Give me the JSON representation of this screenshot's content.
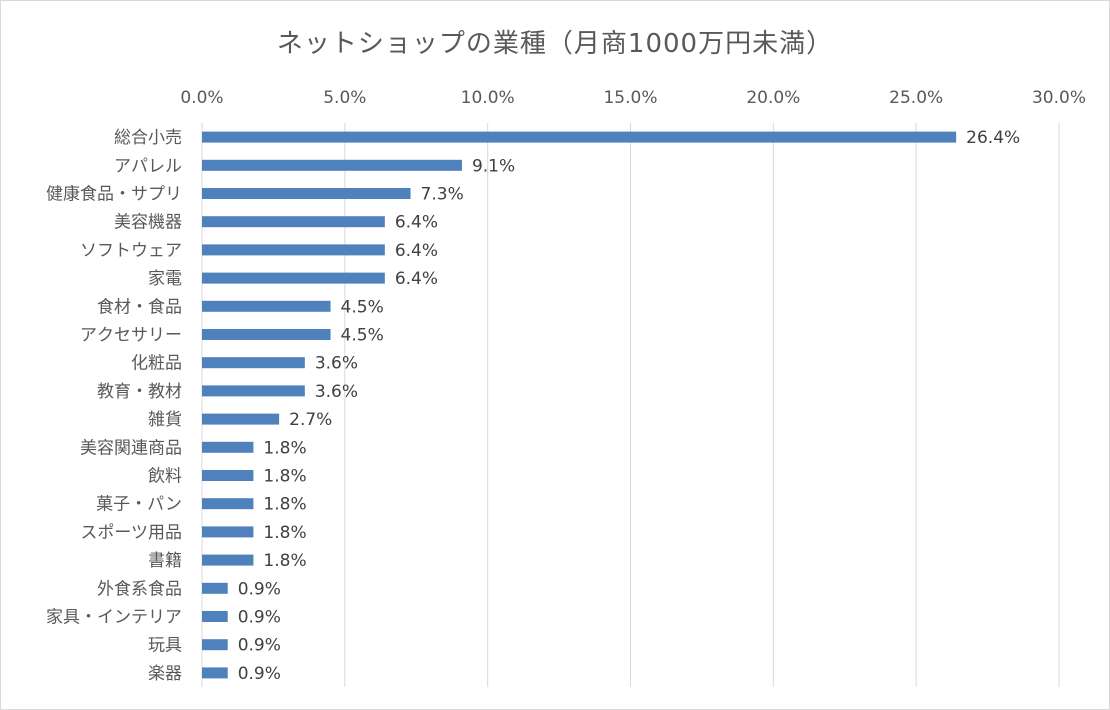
{
  "chart_data": {
    "type": "bar",
    "orientation": "horizontal",
    "title": "ネットショップの業種（月商1000万円未満）",
    "categories": [
      "総合小売",
      "アパレル",
      "健康食品・サプリ",
      "美容機器",
      "ソフトウェア",
      "家電",
      "食材・食品",
      "アクセサリー",
      "化粧品",
      "教育・教材",
      "雑貨",
      "美容関連商品",
      "飲料",
      "菓子・パン",
      "スポーツ用品",
      "書籍",
      "外食系食品",
      "家具・インテリア",
      "玩具",
      "楽器"
    ],
    "values": [
      26.4,
      9.1,
      7.3,
      6.4,
      6.4,
      6.4,
      4.5,
      4.5,
      3.6,
      3.6,
      2.7,
      1.8,
      1.8,
      1.8,
      1.8,
      1.8,
      0.9,
      0.9,
      0.9,
      0.9
    ],
    "data_labels": [
      "26.4%",
      "9.1%",
      "7.3%",
      "6.4%",
      "6.4%",
      "6.4%",
      "4.5%",
      "4.5%",
      "3.6%",
      "3.6%",
      "2.7%",
      "1.8%",
      "1.8%",
      "1.8%",
      "1.8%",
      "1.8%",
      "0.9%",
      "0.9%",
      "0.9%",
      "0.9%"
    ],
    "xlim": [
      0,
      30
    ],
    "x_ticks": [
      0,
      5,
      10,
      15,
      20,
      25,
      30
    ],
    "x_tick_labels": [
      "0.0%",
      "5.0%",
      "10.0%",
      "15.0%",
      "20.0%",
      "25.0%",
      "30.0%"
    ],
    "x_axis_position": "top",
    "grid": true,
    "legend": "none",
    "colors": {
      "bar": "#4f81bd",
      "grid": "#d9d9d9",
      "text": "#595959"
    }
  }
}
